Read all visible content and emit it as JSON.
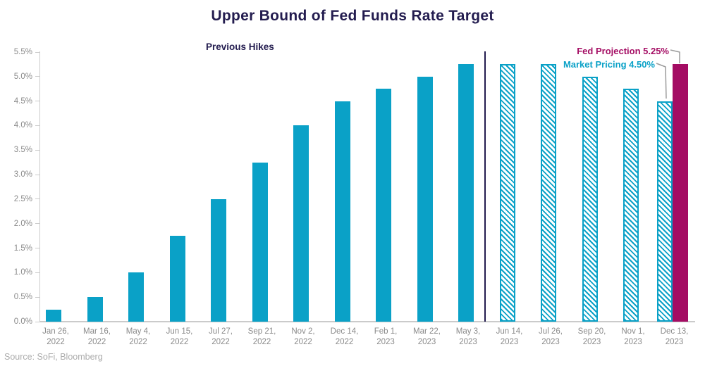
{
  "title": "Upper Bound of Fed Funds Rate Target",
  "section_label": "Previous Hikes",
  "source": "Source: SoFi, Bloomberg",
  "annotations": {
    "fed": {
      "label": "Fed Projection 5.25%",
      "color": "#A40C63"
    },
    "market": {
      "label": "Market Pricing 4.50%",
      "color": "#0AA1C7"
    }
  },
  "chart_data": {
    "type": "bar",
    "title": "Upper Bound of Fed Funds Rate Target",
    "xlabel": "",
    "ylabel": "",
    "ylim": [
      0,
      5.5
    ],
    "ytick_step": 0.5,
    "ytick_labels": [
      "0.0%",
      "0.5%",
      "1.0%",
      "1.5%",
      "2.0%",
      "2.5%",
      "3.0%",
      "3.5%",
      "4.0%",
      "4.5%",
      "5.0%",
      "5.5%"
    ],
    "grid": false,
    "legend_position": "none",
    "divider_after_category": "May 3, 2023",
    "series_styles": {
      "Previous Hikes": "solid-teal",
      "Market Pricing": "hatched-teal",
      "Fed Projection": "solid-magenta"
    },
    "bars": [
      {
        "label_line1": "Jan 26,",
        "label_line2": "2022",
        "series": "Previous Hikes",
        "value": 0.25
      },
      {
        "label_line1": "Mar 16,",
        "label_line2": "2022",
        "series": "Previous Hikes",
        "value": 0.5
      },
      {
        "label_line1": "May 4,",
        "label_line2": "2022",
        "series": "Previous Hikes",
        "value": 1.0
      },
      {
        "label_line1": "Jun 15,",
        "label_line2": "2022",
        "series": "Previous Hikes",
        "value": 1.75
      },
      {
        "label_line1": "Jul 27,",
        "label_line2": "2022",
        "series": "Previous Hikes",
        "value": 2.5
      },
      {
        "label_line1": "Sep 21,",
        "label_line2": "2022",
        "series": "Previous Hikes",
        "value": 3.25
      },
      {
        "label_line1": "Nov 2,",
        "label_line2": "2022",
        "series": "Previous Hikes",
        "value": 4.0
      },
      {
        "label_line1": "Dec 14,",
        "label_line2": "2022",
        "series": "Previous Hikes",
        "value": 4.5
      },
      {
        "label_line1": "Feb 1,",
        "label_line2": "2023",
        "series": "Previous Hikes",
        "value": 4.75
      },
      {
        "label_line1": "Mar 22,",
        "label_line2": "2023",
        "series": "Previous Hikes",
        "value": 5.0
      },
      {
        "label_line1": "May 3,",
        "label_line2": "2023",
        "series": "Previous Hikes",
        "value": 5.25
      },
      {
        "label_line1": "Jun 14,",
        "label_line2": "2023",
        "series": "Market Pricing",
        "value": 5.25
      },
      {
        "label_line1": "Jul 26,",
        "label_line2": "2023",
        "series": "Market Pricing",
        "value": 5.25
      },
      {
        "label_line1": "Sep 20,",
        "label_line2": "2023",
        "series": "Market Pricing",
        "value": 5.0
      },
      {
        "label_line1": "Nov 1,",
        "label_line2": "2023",
        "series": "Market Pricing",
        "value": 4.75
      },
      {
        "label_line1": "Dec 13,",
        "label_line2": "2023",
        "series": "Market Pricing",
        "value": 4.5,
        "second_bar": {
          "series": "Fed Projection",
          "value": 5.25
        }
      }
    ],
    "colors": {
      "teal": "#0AA1C7",
      "magenta": "#A40C63",
      "navy": "#231C4F",
      "axis_text": "#8A8A8A",
      "axis_line": "#CBCBCB",
      "connector": "#9B9B9B"
    }
  }
}
